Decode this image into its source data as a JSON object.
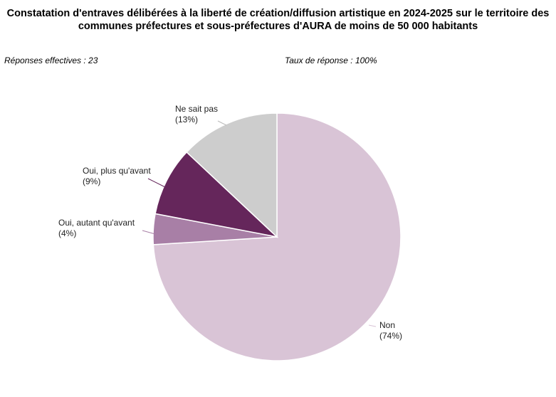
{
  "title_lines": [
    "Constatation d'entraves délibérées à la liberté de création/diffusion artistique en 2024-2025 sur le territoire des",
    "communes préfectures et sous-préfectures d'AURA de moins de 50 000 habitants"
  ],
  "responses_label": "Réponses effectives : 23",
  "rate_label": "Taux de réponse : 100%",
  "chart_data": {
    "type": "pie",
    "title": "Constatation d'entraves délibérées à la liberté de création/diffusion artistique en 2024-2025 sur le territoire des communes préfectures et sous-préfectures d'AURA de moins de 50 000 habitants",
    "start": "12 o'clock",
    "direction": "clockwise",
    "slices": [
      {
        "name": "Non",
        "pct_label": "(74%)",
        "value": 74,
        "color": "#d9c4d6"
      },
      {
        "name": "Oui, autant qu'avant",
        "pct_label": "(4%)",
        "value": 4,
        "color": "#a87fa6"
      },
      {
        "name": "Oui, plus qu'avant",
        "pct_label": "(9%)",
        "value": 9,
        "color": "#65265b"
      },
      {
        "name": "Ne sait pas",
        "pct_label": "(13%)",
        "value": 13,
        "color": "#cdcdcd"
      }
    ]
  }
}
